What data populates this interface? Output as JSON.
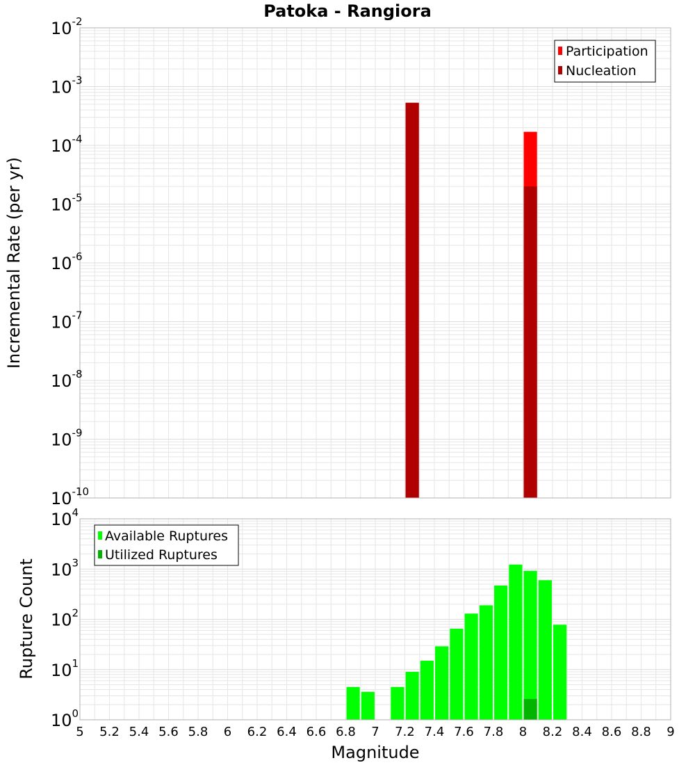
{
  "chart_data": [
    {
      "type": "bar",
      "title": "Patoka - Rangiora",
      "ylabel": "Incremental Rate (per yr)",
      "xlabel": "",
      "yscale": "log",
      "ylim_exp": [
        -10,
        -2
      ],
      "xlim": [
        5,
        9
      ],
      "bar_width": 0.09,
      "series": [
        {
          "name": "Participation",
          "color": "#ff0000",
          "points": [
            {
              "x": 7.25,
              "y": 0.00053
            },
            {
              "x": 8.05,
              "y": 0.00017
            }
          ]
        },
        {
          "name": "Nucleation",
          "color": "#b00000",
          "points": [
            {
              "x": 7.25,
              "y": 0.00053
            },
            {
              "x": 8.05,
              "y": 2e-05
            }
          ]
        }
      ],
      "legend": {
        "position": "top-right",
        "entries": [
          "Participation",
          "Nucleation"
        ]
      }
    },
    {
      "type": "bar",
      "title": "",
      "ylabel": "Rupture Count",
      "xlabel": "Magnitude",
      "yscale": "log",
      "ylim_exp": [
        0,
        4
      ],
      "xlim": [
        5,
        9
      ],
      "bar_width": 0.09,
      "series": [
        {
          "name": "Available Ruptures",
          "color": "#00ff00",
          "points": [
            {
              "x": 6.85,
              "y": 4.5
            },
            {
              "x": 6.95,
              "y": 3.6
            },
            {
              "x": 7.15,
              "y": 4.5
            },
            {
              "x": 7.25,
              "y": 9
            },
            {
              "x": 7.35,
              "y": 15
            },
            {
              "x": 7.45,
              "y": 29
            },
            {
              "x": 7.55,
              "y": 65
            },
            {
              "x": 7.65,
              "y": 130
            },
            {
              "x": 7.75,
              "y": 190
            },
            {
              "x": 7.85,
              "y": 470
            },
            {
              "x": 7.95,
              "y": 1230
            },
            {
              "x": 8.05,
              "y": 920
            },
            {
              "x": 8.15,
              "y": 600
            },
            {
              "x": 8.25,
              "y": 78
            }
          ]
        },
        {
          "name": "Utilized Ruptures",
          "color": "#00b400",
          "points": [
            {
              "x": 7.25,
              "y": 1
            },
            {
              "x": 8.05,
              "y": 2.6
            }
          ]
        }
      ],
      "legend": {
        "position": "top-left",
        "entries": [
          "Available Ruptures",
          "Utilized Ruptures"
        ]
      }
    }
  ],
  "x_ticks": [
    "5",
    "5.2",
    "5.4",
    "5.6",
    "5.8",
    "6",
    "6.2",
    "6.4",
    "6.6",
    "6.8",
    "7",
    "7.2",
    "7.4",
    "7.6",
    "7.8",
    "8",
    "8.2",
    "8.4",
    "8.6",
    "8.8",
    "9"
  ],
  "top_y_ticks": [
    {
      "base": "10",
      "exp": "-10"
    },
    {
      "base": "10",
      "exp": "-9"
    },
    {
      "base": "10",
      "exp": "-8"
    },
    {
      "base": "10",
      "exp": "-7"
    },
    {
      "base": "10",
      "exp": "-6"
    },
    {
      "base": "10",
      "exp": "-5"
    },
    {
      "base": "10",
      "exp": "-4"
    },
    {
      "base": "10",
      "exp": "-3"
    },
    {
      "base": "10",
      "exp": "-2"
    }
  ],
  "bottom_y_ticks": [
    {
      "base": "10",
      "exp": "0"
    },
    {
      "base": "10",
      "exp": "1"
    },
    {
      "base": "10",
      "exp": "2"
    },
    {
      "base": "10",
      "exp": "3"
    },
    {
      "base": "10",
      "exp": "4"
    }
  ]
}
